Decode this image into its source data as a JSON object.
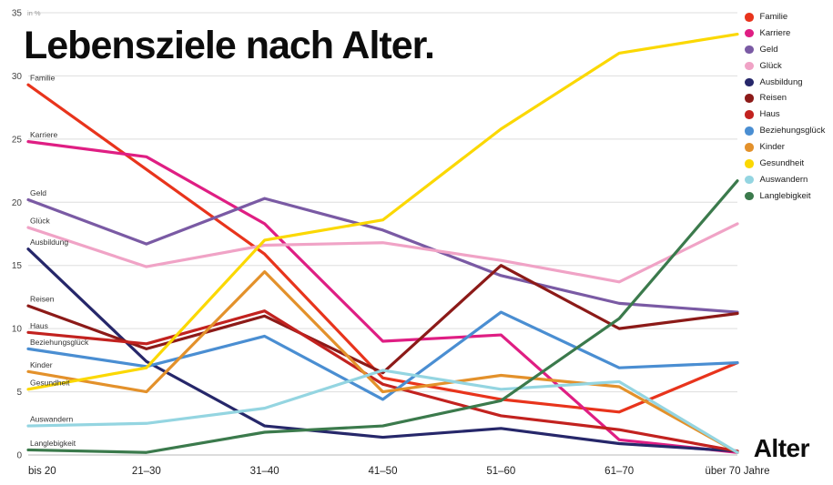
{
  "title": "Lebensziele nach Alter.",
  "chart_data": {
    "type": "line",
    "title": "Lebensziele nach Alter.",
    "xlabel": "Alter",
    "ylabel": "in %",
    "ylim": [
      0,
      35
    ],
    "yticks": [
      0,
      5,
      10,
      15,
      20,
      25,
      30,
      35
    ],
    "grid": true,
    "legend_position": "top-right",
    "categories": [
      "bis 20",
      "21–30",
      "31–40",
      "41–50",
      "51–60",
      "61–70",
      "über 70 Jahre"
    ],
    "series": [
      {
        "name": "Familie",
        "color": "#e8341c",
        "values": [
          29.3,
          22.6,
          15.9,
          6.1,
          4.4,
          3.4,
          7.3
        ]
      },
      {
        "name": "Karriere",
        "color": "#df1e83",
        "values": [
          24.8,
          23.6,
          18.3,
          9.0,
          9.5,
          1.2,
          0.2
        ]
      },
      {
        "name": "Geld",
        "color": "#7a5aa4",
        "values": [
          20.2,
          16.7,
          20.3,
          17.8,
          14.2,
          12.0,
          11.3
        ]
      },
      {
        "name": "Glück",
        "color": "#f0a3c6",
        "values": [
          18.0,
          14.9,
          16.6,
          16.8,
          15.4,
          13.7,
          18.3
        ]
      },
      {
        "name": "Ausbildung",
        "color": "#26276a",
        "values": [
          16.3,
          7.4,
          2.3,
          1.4,
          2.1,
          0.9,
          0.3
        ]
      },
      {
        "name": "Reisen",
        "color": "#8c1a18",
        "values": [
          11.8,
          8.4,
          11.0,
          6.5,
          15.0,
          10.0,
          11.2
        ]
      },
      {
        "name": "Haus",
        "color": "#c2221f",
        "values": [
          9.7,
          8.8,
          11.4,
          5.6,
          3.1,
          2.0,
          0.3
        ]
      },
      {
        "name": "Beziehungsglück",
        "color": "#4a8ed2",
        "values": [
          8.4,
          7.0,
          9.4,
          4.4,
          11.3,
          6.9,
          7.3
        ]
      },
      {
        "name": "Kinder",
        "color": "#e3912b",
        "values": [
          6.6,
          5.0,
          14.5,
          5.0,
          6.3,
          5.4,
          0.2
        ]
      },
      {
        "name": "Gesundheit",
        "color": "#fbd802",
        "values": [
          5.2,
          6.9,
          17.0,
          18.6,
          25.8,
          31.8,
          33.3
        ]
      },
      {
        "name": "Auswandern",
        "color": "#94d5e1",
        "values": [
          2.3,
          2.5,
          3.7,
          6.7,
          5.2,
          5.8,
          0.2
        ]
      },
      {
        "name": "Langlebigkeit",
        "color": "#3b7a4c",
        "values": [
          0.4,
          0.2,
          1.8,
          2.3,
          4.3,
          10.8,
          21.7
        ]
      }
    ]
  }
}
